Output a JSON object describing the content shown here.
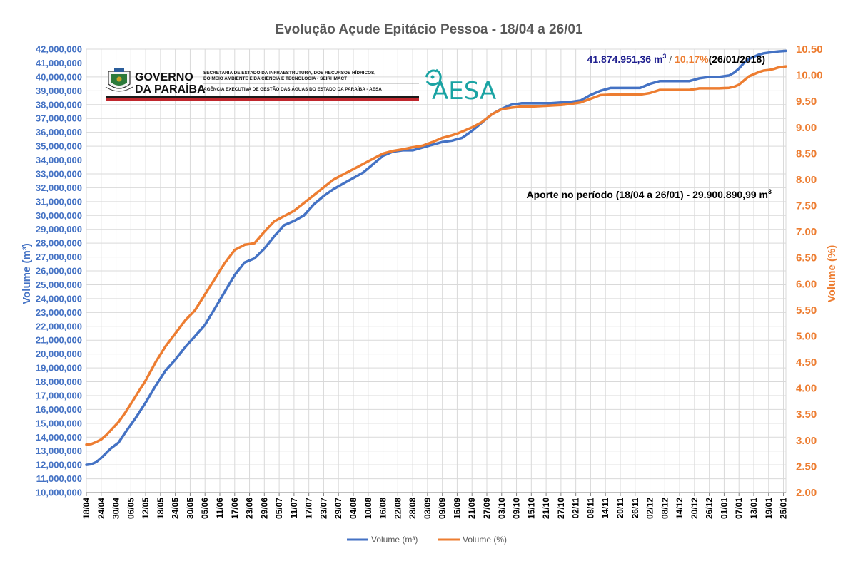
{
  "chart_data": {
    "type": "line",
    "title": "Evolução Açude Epitácio Pessoa - 18/04 a 26/01",
    "ylabel_left": "Volume (m³)",
    "ylabel_right": "Volume (%)",
    "ylim_left": [
      10000000,
      42000000
    ],
    "ylim_right": [
      2.0,
      10.5
    ],
    "yticks_left": [
      "10,000,000",
      "11,000,000",
      "12,000,000",
      "13,000,000",
      "14,000,000",
      "15,000,000",
      "16,000,000",
      "17,000,000",
      "18,000,000",
      "19,000,000",
      "20,000,000",
      "21,000,000",
      "22,000,000",
      "23,000,000",
      "24,000,000",
      "25,000,000",
      "26,000,000",
      "27,000,000",
      "28,000,000",
      "29,000,000",
      "30,000,000",
      "31,000,000",
      "32,000,000",
      "33,000,000",
      "34,000,000",
      "35,000,000",
      "36,000,000",
      "37,000,000",
      "38,000,000",
      "39,000,000",
      "40,000,000",
      "41,000,000",
      "42,000,000"
    ],
    "yticks_right": [
      "2.00",
      "2.50",
      "3.00",
      "3.50",
      "4.00",
      "4.50",
      "5.00",
      "5.50",
      "6.00",
      "6.50",
      "7.00",
      "7.50",
      "8.00",
      "8.50",
      "9.00",
      "9.50",
      "10.00",
      "10.50"
    ],
    "categories": [
      "18/04",
      "24/04",
      "30/04",
      "06/05",
      "12/05",
      "18/05",
      "24/05",
      "30/05",
      "05/06",
      "11/06",
      "17/06",
      "23/06",
      "29/06",
      "05/07",
      "11/07",
      "17/07",
      "23/07",
      "29/07",
      "04/08",
      "10/08",
      "16/08",
      "22/08",
      "28/08",
      "03/09",
      "09/09",
      "15/09",
      "21/09",
      "27/09",
      "03/10",
      "09/10",
      "15/10",
      "21/10",
      "27/10",
      "02/11",
      "08/11",
      "14/11",
      "20/11",
      "26/11",
      "02/12",
      "08/12",
      "14/12",
      "20/12",
      "26/12",
      "01/01",
      "07/01",
      "13/01",
      "19/01",
      "25/01"
    ],
    "x_day_max": 283,
    "series": [
      {
        "name": "Volume (m³)",
        "axis": "left",
        "color": "#4472c4",
        "x": [
          0,
          2,
          4,
          6,
          8,
          10,
          13,
          16,
          20,
          24,
          28,
          32,
          36,
          40,
          44,
          48,
          52,
          56,
          60,
          64,
          68,
          72,
          76,
          80,
          84,
          88,
          92,
          96,
          100,
          104,
          108,
          112,
          116,
          120,
          124,
          128,
          132,
          136,
          140,
          144,
          148,
          150,
          152,
          156,
          160,
          164,
          168,
          172,
          176,
          180,
          184,
          188,
          192,
          196,
          200,
          204,
          208,
          212,
          216,
          220,
          224,
          228,
          232,
          236,
          240,
          244,
          248,
          252,
          256,
          260,
          262,
          264,
          266,
          268,
          270,
          272,
          274,
          276,
          278,
          280,
          283
        ],
        "values": [
          12000000,
          12050000,
          12200000,
          12500000,
          12850000,
          13200000,
          13600000,
          14400000,
          15400000,
          16500000,
          17700000,
          18800000,
          19600000,
          20500000,
          21300000,
          22100000,
          23300000,
          24500000,
          25700000,
          26600000,
          26900000,
          27600000,
          28500000,
          29300000,
          29600000,
          30000000,
          30800000,
          31400000,
          31900000,
          32300000,
          32700000,
          33100000,
          33700000,
          34300000,
          34600000,
          34700000,
          34700000,
          34900000,
          35100000,
          35300000,
          35400000,
          35500000,
          35600000,
          36100000,
          36700000,
          37300000,
          37700000,
          38000000,
          38100000,
          38100000,
          38100000,
          38100000,
          38150000,
          38200000,
          38300000,
          38700000,
          39000000,
          39200000,
          39200000,
          39200000,
          39200000,
          39500000,
          39700000,
          39700000,
          39700000,
          39700000,
          39900000,
          40000000,
          40000000,
          40100000,
          40300000,
          40600000,
          41000000,
          41300000,
          41450000,
          41600000,
          41700000,
          41750000,
          41800000,
          41840000,
          41874951
        ]
      },
      {
        "name": "Volume (%)",
        "axis": "right",
        "color": "#ed7d31",
        "x": [
          0,
          2,
          4,
          6,
          8,
          10,
          13,
          16,
          20,
          24,
          28,
          32,
          36,
          40,
          44,
          48,
          52,
          56,
          60,
          64,
          68,
          72,
          76,
          80,
          84,
          88,
          92,
          96,
          100,
          104,
          108,
          112,
          116,
          120,
          124,
          128,
          132,
          136,
          140,
          144,
          148,
          150,
          152,
          156,
          160,
          164,
          168,
          172,
          176,
          180,
          184,
          188,
          192,
          196,
          200,
          204,
          208,
          212,
          216,
          220,
          224,
          228,
          232,
          236,
          240,
          244,
          248,
          252,
          256,
          260,
          262,
          264,
          266,
          268,
          270,
          272,
          274,
          276,
          278,
          280,
          283
        ],
        "values": [
          2.92,
          2.93,
          2.97,
          3.02,
          3.1,
          3.2,
          3.35,
          3.55,
          3.85,
          4.15,
          4.5,
          4.8,
          5.05,
          5.3,
          5.5,
          5.8,
          6.1,
          6.4,
          6.65,
          6.75,
          6.78,
          7.0,
          7.2,
          7.3,
          7.4,
          7.55,
          7.7,
          7.85,
          8.0,
          8.1,
          8.2,
          8.3,
          8.4,
          8.5,
          8.55,
          8.58,
          8.62,
          8.65,
          8.72,
          8.8,
          8.85,
          8.88,
          8.92,
          9.0,
          9.1,
          9.25,
          9.35,
          9.38,
          9.4,
          9.4,
          9.41,
          9.42,
          9.43,
          9.45,
          9.48,
          9.55,
          9.62,
          9.63,
          9.63,
          9.63,
          9.63,
          9.66,
          9.72,
          9.72,
          9.72,
          9.72,
          9.75,
          9.75,
          9.75,
          9.76,
          9.78,
          9.82,
          9.9,
          9.98,
          10.02,
          10.06,
          10.09,
          10.1,
          10.12,
          10.15,
          10.17
        ]
      }
    ],
    "annotation_top": {
      "volume_value": "41.874.951,36 m",
      "volume_unit_sup": "3",
      "separator": " / ",
      "percent_value": "10,17%",
      "date": "(26/01/2018)",
      "volume_color": "#1f1f8f",
      "percent_color": "#ed7d31"
    },
    "annotation_mid": {
      "text": "Aporte no período (18/04 a 26/01) -  29.900.890,99 m",
      "unit_sup": "3"
    },
    "legend": {
      "position": "bottom",
      "items": [
        "Volume (m³)",
        "Volume (%)"
      ]
    },
    "grid": true
  },
  "logo": {
    "gov_line1": "GOVERNO",
    "gov_line2": "DA PARAÍBA",
    "sec_line1": "SECRETARIA DE ESTADO DA INFRAESTRUTURA, DOS RECURSOS HÍDRICOS,",
    "sec_line2": "DO MEIO AMBIENTE E DA CIÊNCIA E TECNOLOGIA - SEIRHMACT",
    "sec_line3": "AGÊNCIA EXECUTIVA DE GESTÃO DAS ÁGUAS DO ESTADO DA PARAÍBA - AESA",
    "aesa": "AESA"
  }
}
